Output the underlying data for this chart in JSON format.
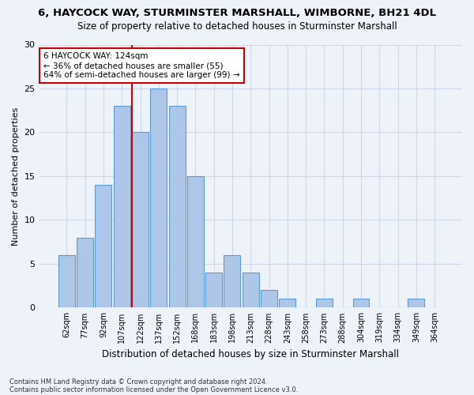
{
  "title": "6, HAYCOCK WAY, STURMINSTER MARSHALL, WIMBORNE, BH21 4DL",
  "subtitle": "Size of property relative to detached houses in Sturminster Marshall",
  "xlabel": "Distribution of detached houses by size in Sturminster Marshall",
  "ylabel": "Number of detached properties",
  "footer_line1": "Contains HM Land Registry data © Crown copyright and database right 2024.",
  "footer_line2": "Contains public sector information licensed under the Open Government Licence v3.0.",
  "categories": [
    "62sqm",
    "77sqm",
    "92sqm",
    "107sqm",
    "122sqm",
    "137sqm",
    "152sqm",
    "168sqm",
    "183sqm",
    "198sqm",
    "213sqm",
    "228sqm",
    "243sqm",
    "258sqm",
    "273sqm",
    "288sqm",
    "304sqm",
    "319sqm",
    "334sqm",
    "349sqm",
    "364sqm"
  ],
  "values": [
    6,
    8,
    14,
    23,
    20,
    25,
    23,
    15,
    4,
    6,
    4,
    2,
    1,
    0,
    1,
    0,
    1,
    0,
    0,
    1,
    0
  ],
  "bar_color": "#aec6e8",
  "bar_edge_color": "#5b9bd5",
  "grid_color": "#d0d8e8",
  "background_color": "#eef2f9",
  "annotation_line1": "6 HAYCOCK WAY: 124sqm",
  "annotation_line2": "← 36% of detached houses are smaller (55)",
  "annotation_line3": "64% of semi-detached houses are larger (99) →",
  "annotation_box_color": "#ffffff",
  "annotation_box_edge": "#cc0000",
  "vline_color": "#cc0000",
  "vline_x_index": 4,
  "ylim": [
    0,
    30
  ],
  "yticks": [
    0,
    5,
    10,
    15,
    20,
    25,
    30
  ]
}
